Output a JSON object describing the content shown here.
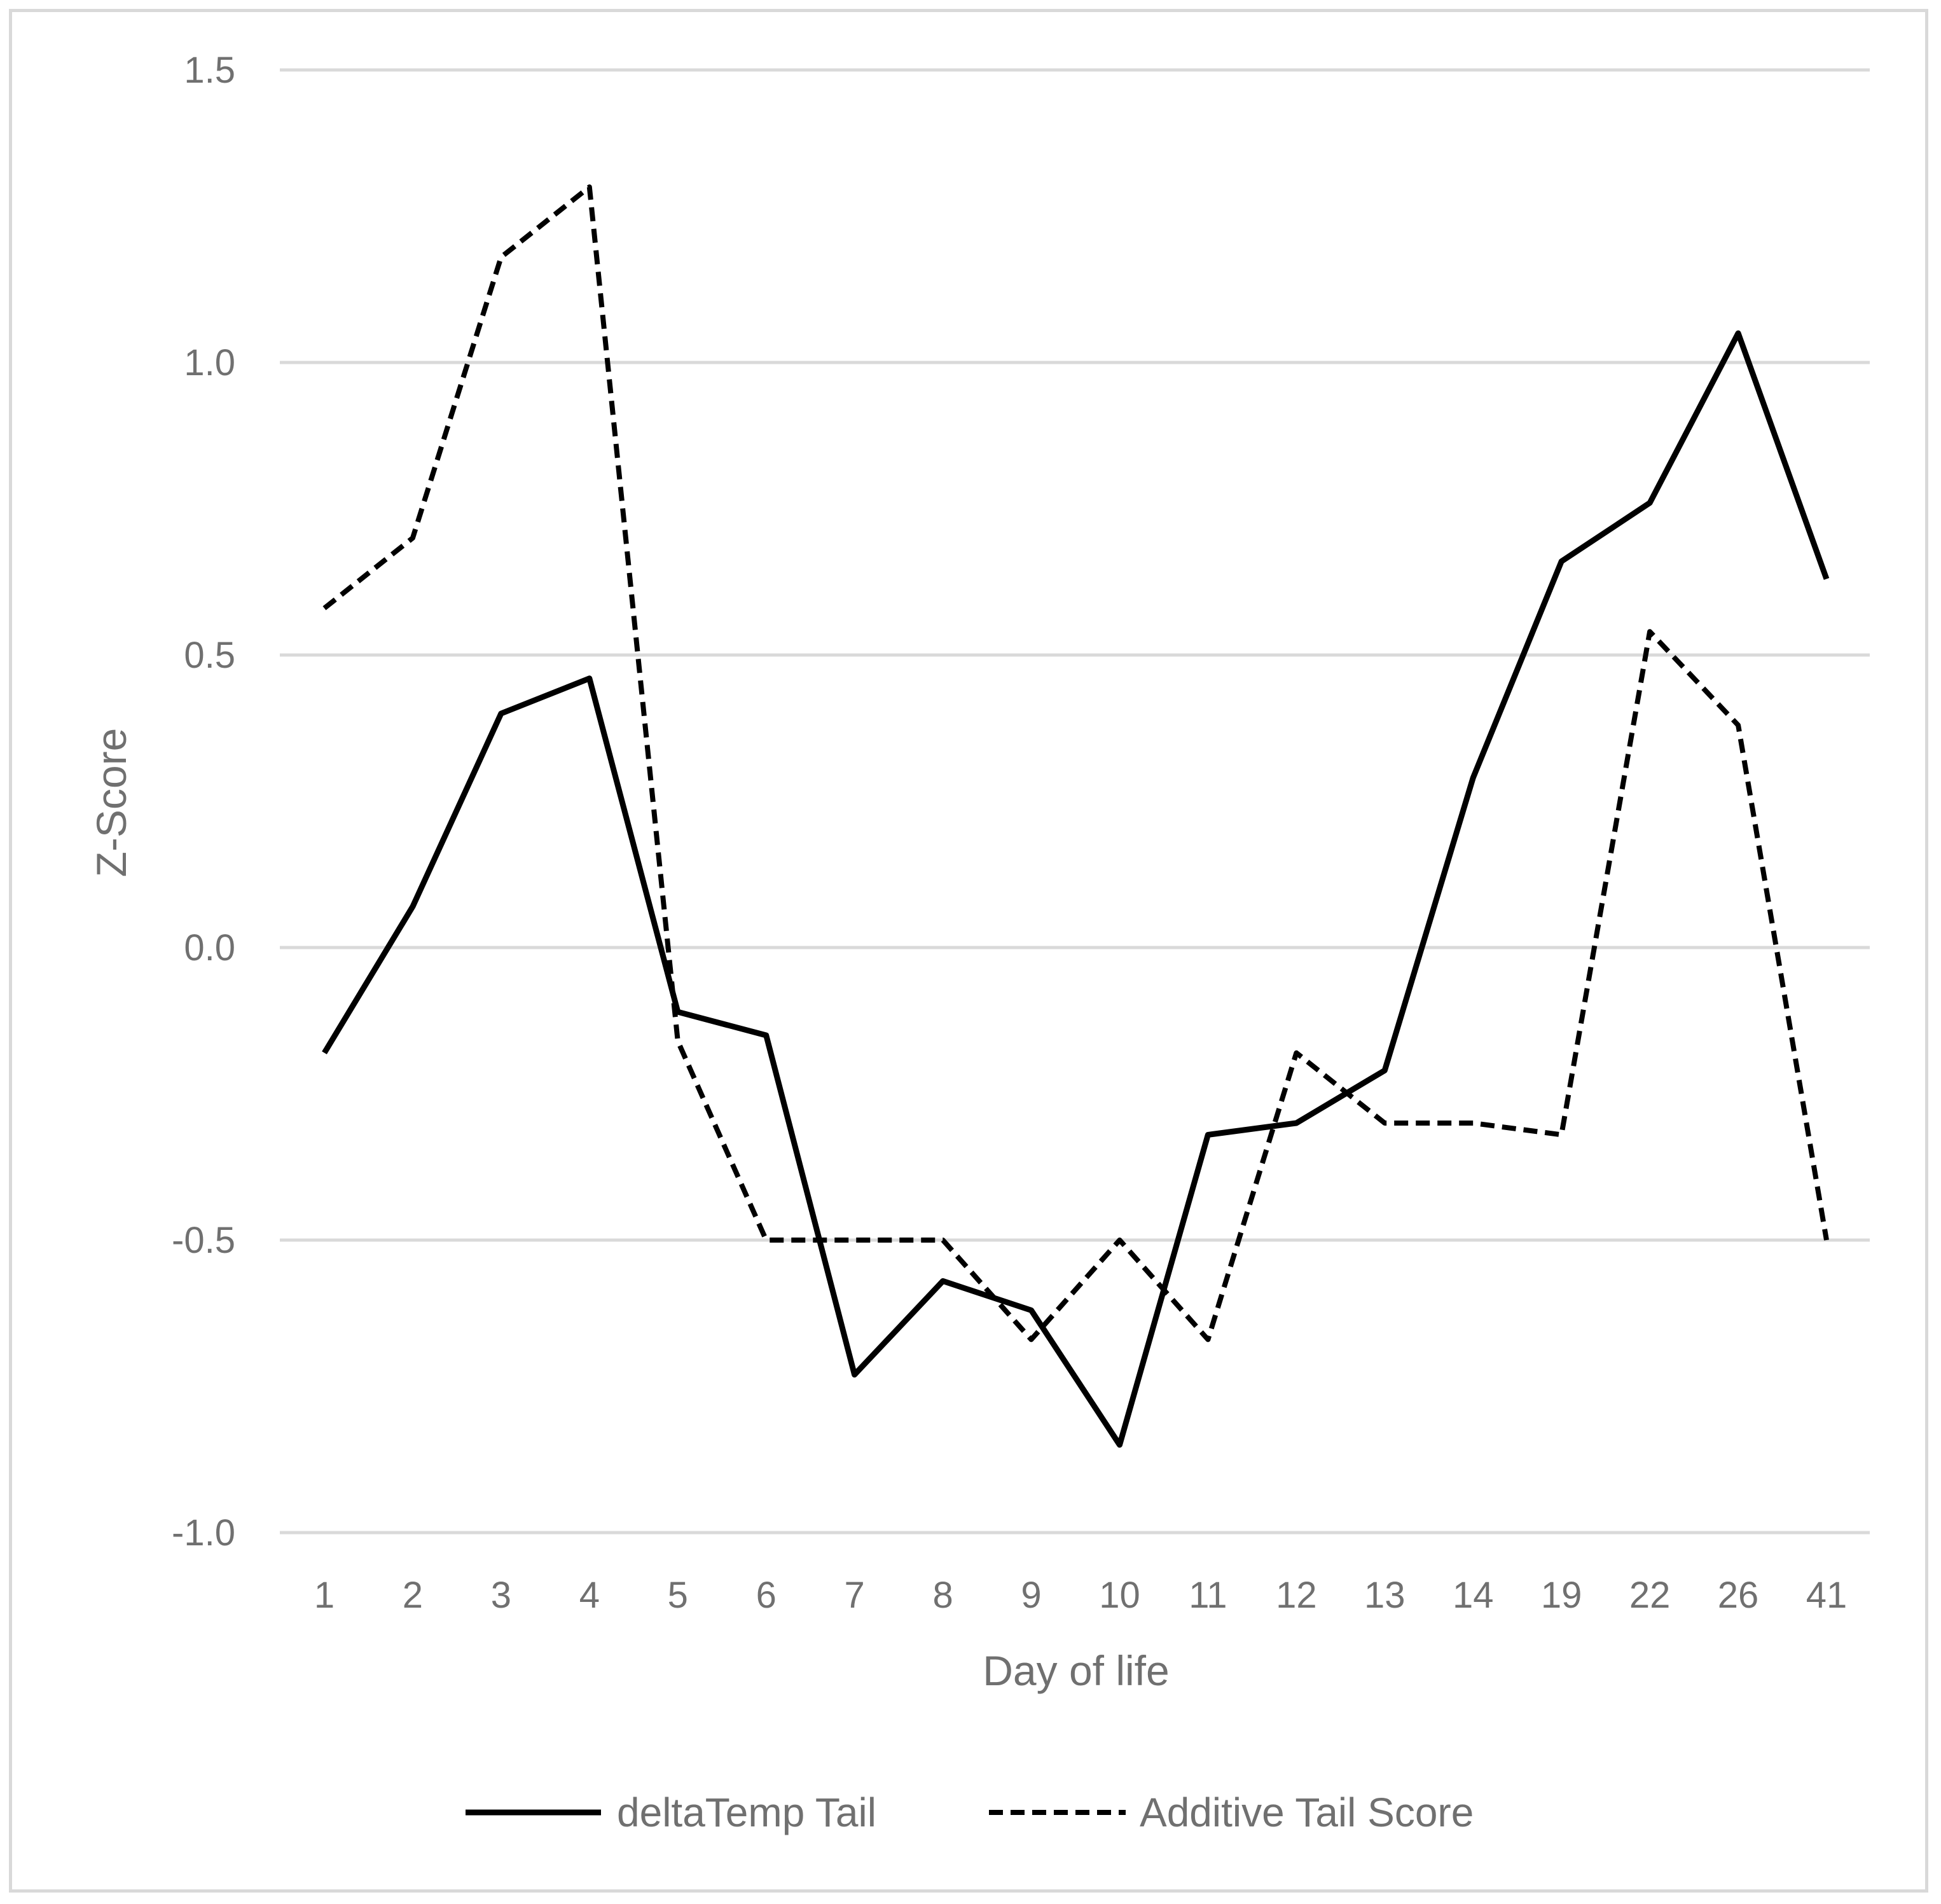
{
  "chart_data": {
    "type": "line",
    "title": "",
    "xlabel": "Day of life",
    "ylabel": "Z-Score",
    "categories": [
      "1",
      "2",
      "3",
      "4",
      "5",
      "6",
      "7",
      "8",
      "9",
      "10",
      "11",
      "12",
      "13",
      "14",
      "19",
      "22",
      "26",
      "41"
    ],
    "y_ticks": [
      "1.5",
      "1.0",
      "0.5",
      "0.0",
      "-0.5",
      "-1.0"
    ],
    "ylim": [
      -1.0,
      1.5
    ],
    "grid": true,
    "legend_position": "bottom",
    "series": [
      {
        "name": "deltaTemp Tail",
        "style": "solid",
        "color": "#000000",
        "values": [
          -0.18,
          0.07,
          0.4,
          0.46,
          -0.11,
          -0.15,
          -0.73,
          -0.57,
          -0.62,
          -0.85,
          -0.32,
          -0.3,
          -0.21,
          0.29,
          0.66,
          0.76,
          1.05,
          0.63
        ]
      },
      {
        "name": "Additive Tail Score",
        "style": "dashed",
        "color": "#000000",
        "values": [
          0.58,
          0.7,
          1.18,
          1.3,
          -0.16,
          -0.5,
          -0.5,
          -0.5,
          -0.67,
          -0.5,
          -0.67,
          -0.18,
          -0.3,
          -0.3,
          -0.32,
          0.54,
          0.38,
          -0.5
        ]
      }
    ]
  }
}
